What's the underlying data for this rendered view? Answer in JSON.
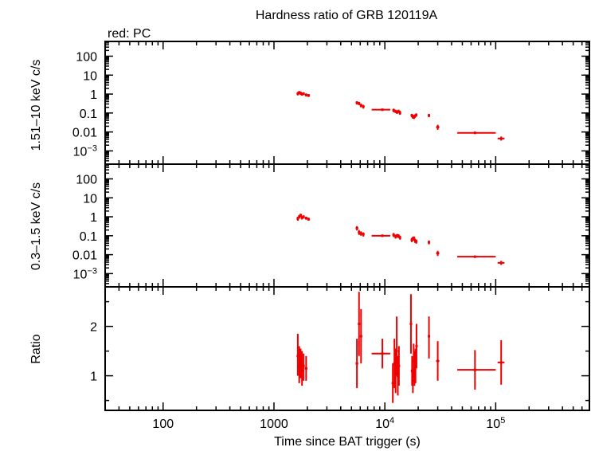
{
  "chart_data": {
    "type": "scatter",
    "title": "Hardness ratio of GRB 120119A",
    "legend_text": "red: PC",
    "xlabel": "Time since BAT trigger (s)",
    "x_scale": "log",
    "xlim": [
      30,
      700000
    ],
    "x_tick_labels": [
      {
        "value": 100,
        "base": "100",
        "exp": ""
      },
      {
        "value": 1000,
        "base": "1000",
        "exp": ""
      },
      {
        "value": 10000,
        "base": "10",
        "exp": "4"
      },
      {
        "value": 100000,
        "base": "10",
        "exp": "5"
      }
    ],
    "series_color": "#ee0000",
    "panels": [
      {
        "id": "hard",
        "ylabel": "1.51–10 keV c/s",
        "y_scale": "log",
        "ylim": [
          0.0002,
          600
        ],
        "y_tick_labels": [
          {
            "value": 100,
            "base": "100",
            "exp": ""
          },
          {
            "value": 10,
            "base": "10",
            "exp": ""
          },
          {
            "value": 1,
            "base": "1",
            "exp": ""
          },
          {
            "value": 0.1,
            "base": "0.1",
            "exp": ""
          },
          {
            "value": 0.01,
            "base": "0.01",
            "exp": ""
          },
          {
            "value": 0.001,
            "base": "10",
            "exp": "−3"
          }
        ],
        "points": [
          {
            "x": 1640,
            "xlo": 1620,
            "xhi": 1660,
            "y": 1.05,
            "ylo": 0.85,
            "yhi": 1.3
          },
          {
            "x": 1690,
            "xlo": 1670,
            "xhi": 1710,
            "y": 1.2,
            "ylo": 1.0,
            "yhi": 1.45
          },
          {
            "x": 1740,
            "xlo": 1720,
            "xhi": 1760,
            "y": 1.1,
            "ylo": 0.9,
            "yhi": 1.35
          },
          {
            "x": 1790,
            "xlo": 1770,
            "xhi": 1810,
            "y": 1.0,
            "ylo": 0.82,
            "yhi": 1.2
          },
          {
            "x": 1850,
            "xlo": 1820,
            "xhi": 1880,
            "y": 1.05,
            "ylo": 0.88,
            "yhi": 1.25
          },
          {
            "x": 1950,
            "xlo": 1900,
            "xhi": 2000,
            "y": 0.9,
            "ylo": 0.75,
            "yhi": 1.08
          },
          {
            "x": 2050,
            "xlo": 2000,
            "xhi": 2100,
            "y": 0.85,
            "ylo": 0.7,
            "yhi": 1.0
          },
          {
            "x": 5600,
            "xlo": 5450,
            "xhi": 5750,
            "y": 0.35,
            "ylo": 0.28,
            "yhi": 0.42
          },
          {
            "x": 5850,
            "xlo": 5750,
            "xhi": 5950,
            "y": 0.32,
            "ylo": 0.26,
            "yhi": 0.39
          },
          {
            "x": 6100,
            "xlo": 5950,
            "xhi": 6250,
            "y": 0.25,
            "ylo": 0.2,
            "yhi": 0.31
          },
          {
            "x": 6400,
            "xlo": 6250,
            "xhi": 6550,
            "y": 0.22,
            "ylo": 0.17,
            "yhi": 0.27
          },
          {
            "x": 9500,
            "xlo": 7600,
            "xhi": 11200,
            "y": 0.15,
            "ylo": 0.13,
            "yhi": 0.17
          },
          {
            "x": 12000,
            "xlo": 11700,
            "xhi": 12300,
            "y": 0.14,
            "ylo": 0.11,
            "yhi": 0.17
          },
          {
            "x": 12500,
            "xlo": 12300,
            "xhi": 12700,
            "y": 0.12,
            "ylo": 0.1,
            "yhi": 0.15
          },
          {
            "x": 12900,
            "xlo": 12700,
            "xhi": 13100,
            "y": 0.11,
            "ylo": 0.09,
            "yhi": 0.14
          },
          {
            "x": 13300,
            "xlo": 13100,
            "xhi": 13500,
            "y": 0.12,
            "ylo": 0.1,
            "yhi": 0.15
          },
          {
            "x": 13700,
            "xlo": 13500,
            "xhi": 13900,
            "y": 0.1,
            "ylo": 0.08,
            "yhi": 0.13
          },
          {
            "x": 17500,
            "xlo": 17300,
            "xhi": 17700,
            "y": 0.075,
            "ylo": 0.06,
            "yhi": 0.09
          },
          {
            "x": 17900,
            "xlo": 17700,
            "xhi": 18100,
            "y": 0.065,
            "ylo": 0.05,
            "yhi": 0.08
          },
          {
            "x": 18300,
            "xlo": 18100,
            "xhi": 18500,
            "y": 0.06,
            "ylo": 0.048,
            "yhi": 0.075
          },
          {
            "x": 18700,
            "xlo": 18500,
            "xhi": 18900,
            "y": 0.07,
            "ylo": 0.056,
            "yhi": 0.085
          },
          {
            "x": 19200,
            "xlo": 18900,
            "xhi": 19500,
            "y": 0.08,
            "ylo": 0.065,
            "yhi": 0.095
          },
          {
            "x": 25000,
            "xlo": 24500,
            "xhi": 25500,
            "y": 0.075,
            "ylo": 0.06,
            "yhi": 0.09
          },
          {
            "x": 30000,
            "xlo": 29000,
            "xhi": 31000,
            "y": 0.018,
            "ylo": 0.013,
            "yhi": 0.024
          },
          {
            "x": 65000,
            "xlo": 45000,
            "xhi": 100000,
            "y": 0.009,
            "ylo": 0.0078,
            "yhi": 0.0103
          },
          {
            "x": 112000,
            "xlo": 104000,
            "xhi": 120000,
            "y": 0.0045,
            "ylo": 0.0035,
            "yhi": 0.0057
          }
        ]
      },
      {
        "id": "soft",
        "ylabel": "0.3–1.5 keV c/s",
        "y_scale": "log",
        "ylim": [
          0.0002,
          600
        ],
        "y_tick_labels": [
          {
            "value": 100,
            "base": "100",
            "exp": ""
          },
          {
            "value": 10,
            "base": "10",
            "exp": ""
          },
          {
            "value": 1,
            "base": "1",
            "exp": ""
          },
          {
            "value": 0.1,
            "base": "0.1",
            "exp": ""
          },
          {
            "value": 0.01,
            "base": "0.01",
            "exp": ""
          },
          {
            "value": 0.001,
            "base": "10",
            "exp": "−3"
          }
        ],
        "points": [
          {
            "x": 1640,
            "xlo": 1620,
            "xhi": 1660,
            "y": 0.8,
            "ylo": 0.62,
            "yhi": 1.0
          },
          {
            "x": 1690,
            "xlo": 1670,
            "xhi": 1710,
            "y": 1.0,
            "ylo": 0.8,
            "yhi": 1.25
          },
          {
            "x": 1740,
            "xlo": 1720,
            "xhi": 1760,
            "y": 1.2,
            "ylo": 0.98,
            "yhi": 1.45
          },
          {
            "x": 1790,
            "xlo": 1770,
            "xhi": 1810,
            "y": 0.9,
            "ylo": 0.72,
            "yhi": 1.1
          },
          {
            "x": 1850,
            "xlo": 1820,
            "xhi": 1880,
            "y": 1.0,
            "ylo": 0.82,
            "yhi": 1.2
          },
          {
            "x": 1950,
            "xlo": 1900,
            "xhi": 2000,
            "y": 0.85,
            "ylo": 0.7,
            "yhi": 1.02
          },
          {
            "x": 2050,
            "xlo": 2000,
            "xhi": 2100,
            "y": 0.75,
            "ylo": 0.62,
            "yhi": 0.9
          },
          {
            "x": 5600,
            "xlo": 5450,
            "xhi": 5750,
            "y": 0.25,
            "ylo": 0.19,
            "yhi": 0.32
          },
          {
            "x": 5850,
            "xlo": 5750,
            "xhi": 5950,
            "y": 0.15,
            "ylo": 0.11,
            "yhi": 0.2
          },
          {
            "x": 6100,
            "xlo": 5950,
            "xhi": 6250,
            "y": 0.13,
            "ylo": 0.1,
            "yhi": 0.17
          },
          {
            "x": 6400,
            "xlo": 6250,
            "xhi": 6550,
            "y": 0.12,
            "ylo": 0.09,
            "yhi": 0.15
          },
          {
            "x": 9500,
            "xlo": 7600,
            "xhi": 11200,
            "y": 0.1,
            "ylo": 0.087,
            "yhi": 0.115
          },
          {
            "x": 12000,
            "xlo": 11700,
            "xhi": 12300,
            "y": 0.11,
            "ylo": 0.085,
            "yhi": 0.14
          },
          {
            "x": 12500,
            "xlo": 12300,
            "xhi": 12700,
            "y": 0.09,
            "ylo": 0.07,
            "yhi": 0.115
          },
          {
            "x": 12900,
            "xlo": 12700,
            "xhi": 13100,
            "y": 0.1,
            "ylo": 0.08,
            "yhi": 0.125
          },
          {
            "x": 13300,
            "xlo": 13100,
            "xhi": 13500,
            "y": 0.095,
            "ylo": 0.075,
            "yhi": 0.12
          },
          {
            "x": 13700,
            "xlo": 13500,
            "xhi": 13900,
            "y": 0.08,
            "ylo": 0.062,
            "yhi": 0.1
          },
          {
            "x": 17500,
            "xlo": 17300,
            "xhi": 17700,
            "y": 0.06,
            "ylo": 0.046,
            "yhi": 0.076
          },
          {
            "x": 17900,
            "xlo": 17700,
            "xhi": 18100,
            "y": 0.07,
            "ylo": 0.055,
            "yhi": 0.088
          },
          {
            "x": 18300,
            "xlo": 18100,
            "xhi": 18500,
            "y": 0.075,
            "ylo": 0.06,
            "yhi": 0.092
          },
          {
            "x": 18700,
            "xlo": 18500,
            "xhi": 18900,
            "y": 0.055,
            "ylo": 0.042,
            "yhi": 0.07
          },
          {
            "x": 19200,
            "xlo": 18900,
            "xhi": 19500,
            "y": 0.05,
            "ylo": 0.038,
            "yhi": 0.064
          },
          {
            "x": 25000,
            "xlo": 24500,
            "xhi": 25500,
            "y": 0.045,
            "ylo": 0.035,
            "yhi": 0.056
          },
          {
            "x": 30000,
            "xlo": 29000,
            "xhi": 31000,
            "y": 0.012,
            "ylo": 0.0085,
            "yhi": 0.016
          },
          {
            "x": 65000,
            "xlo": 45000,
            "xhi": 100000,
            "y": 0.0078,
            "ylo": 0.0068,
            "yhi": 0.0089
          },
          {
            "x": 112000,
            "xlo": 104000,
            "xhi": 120000,
            "y": 0.0037,
            "ylo": 0.0029,
            "yhi": 0.0047
          }
        ]
      },
      {
        "id": "ratio",
        "ylabel": "Ratio",
        "y_scale": "linear",
        "ylim": [
          0.3,
          2.8
        ],
        "y_tick_labels": [
          {
            "value": 2,
            "base": "2",
            "exp": ""
          },
          {
            "value": 1,
            "base": "1",
            "exp": ""
          }
        ],
        "points": [
          {
            "x": 1640,
            "xlo": 1620,
            "xhi": 1660,
            "y": 1.4,
            "ylo": 1.0,
            "yhi": 1.85
          },
          {
            "x": 1690,
            "xlo": 1670,
            "xhi": 1710,
            "y": 1.2,
            "ylo": 0.85,
            "yhi": 1.6
          },
          {
            "x": 1740,
            "xlo": 1720,
            "xhi": 1760,
            "y": 1.35,
            "ylo": 0.95,
            "yhi": 1.55
          },
          {
            "x": 1790,
            "xlo": 1770,
            "xhi": 1810,
            "y": 1.1,
            "ylo": 0.8,
            "yhi": 1.5
          },
          {
            "x": 1850,
            "xlo": 1820,
            "xhi": 1880,
            "y": 1.2,
            "ylo": 0.9,
            "yhi": 1.45
          },
          {
            "x": 1950,
            "xlo": 1900,
            "xhi": 2000,
            "y": 1.15,
            "ylo": 0.9,
            "yhi": 1.4
          },
          {
            "x": 5600,
            "xlo": 5450,
            "xhi": 5750,
            "y": 1.25,
            "ylo": 0.75,
            "yhi": 1.75
          },
          {
            "x": 5850,
            "xlo": 5750,
            "xhi": 5950,
            "y": 2.05,
            "ylo": 1.4,
            "yhi": 2.7
          },
          {
            "x": 6100,
            "xlo": 5950,
            "xhi": 6250,
            "y": 1.8,
            "ylo": 1.25,
            "yhi": 2.35
          },
          {
            "x": 9500,
            "xlo": 7600,
            "xhi": 11200,
            "y": 1.45,
            "ylo": 1.15,
            "yhi": 1.75
          },
          {
            "x": 11800,
            "xlo": 11600,
            "xhi": 12000,
            "y": 0.85,
            "ylo": 0.45,
            "yhi": 1.25
          },
          {
            "x": 12200,
            "xlo": 12000,
            "xhi": 12400,
            "y": 1.25,
            "ylo": 0.75,
            "yhi": 1.75
          },
          {
            "x": 12500,
            "xlo": 12350,
            "xhi": 12650,
            "y": 1.1,
            "ylo": 0.65,
            "yhi": 1.55
          },
          {
            "x": 12800,
            "xlo": 12650,
            "xhi": 12950,
            "y": 1.5,
            "ylo": 1.0,
            "yhi": 2.2
          },
          {
            "x": 13100,
            "xlo": 12950,
            "xhi": 13250,
            "y": 1.0,
            "ylo": 0.6,
            "yhi": 1.4
          },
          {
            "x": 13400,
            "xlo": 13250,
            "xhi": 13550,
            "y": 1.2,
            "ylo": 0.8,
            "yhi": 1.6
          },
          {
            "x": 17200,
            "xlo": 17000,
            "xhi": 17400,
            "y": 2.05,
            "ylo": 1.45,
            "yhi": 2.65
          },
          {
            "x": 17600,
            "xlo": 17400,
            "xhi": 17800,
            "y": 1.1,
            "ylo": 0.8,
            "yhi": 1.4
          },
          {
            "x": 17900,
            "xlo": 17700,
            "xhi": 18100,
            "y": 0.9,
            "ylo": 0.65,
            "yhi": 1.15
          },
          {
            "x": 18200,
            "xlo": 18000,
            "xhi": 18400,
            "y": 1.3,
            "ylo": 0.95,
            "yhi": 1.65
          },
          {
            "x": 18500,
            "xlo": 18300,
            "xhi": 18700,
            "y": 1.15,
            "ylo": 0.8,
            "yhi": 1.5
          },
          {
            "x": 18900,
            "xlo": 18700,
            "xhi": 19100,
            "y": 1.2,
            "ylo": 0.85,
            "yhi": 1.55
          },
          {
            "x": 19300,
            "xlo": 19100,
            "xhi": 19500,
            "y": 1.6,
            "ylo": 1.15,
            "yhi": 2.05
          },
          {
            "x": 25000,
            "xlo": 24500,
            "xhi": 25500,
            "y": 1.8,
            "ylo": 1.35,
            "yhi": 2.2
          },
          {
            "x": 30000,
            "xlo": 29000,
            "xhi": 31000,
            "y": 1.3,
            "ylo": 0.9,
            "yhi": 1.7
          },
          {
            "x": 65000,
            "xlo": 45000,
            "xhi": 100000,
            "y": 1.12,
            "ylo": 0.72,
            "yhi": 1.52
          },
          {
            "x": 112000,
            "xlo": 104000,
            "xhi": 120000,
            "y": 1.27,
            "ylo": 0.82,
            "yhi": 1.72
          }
        ]
      }
    ]
  }
}
